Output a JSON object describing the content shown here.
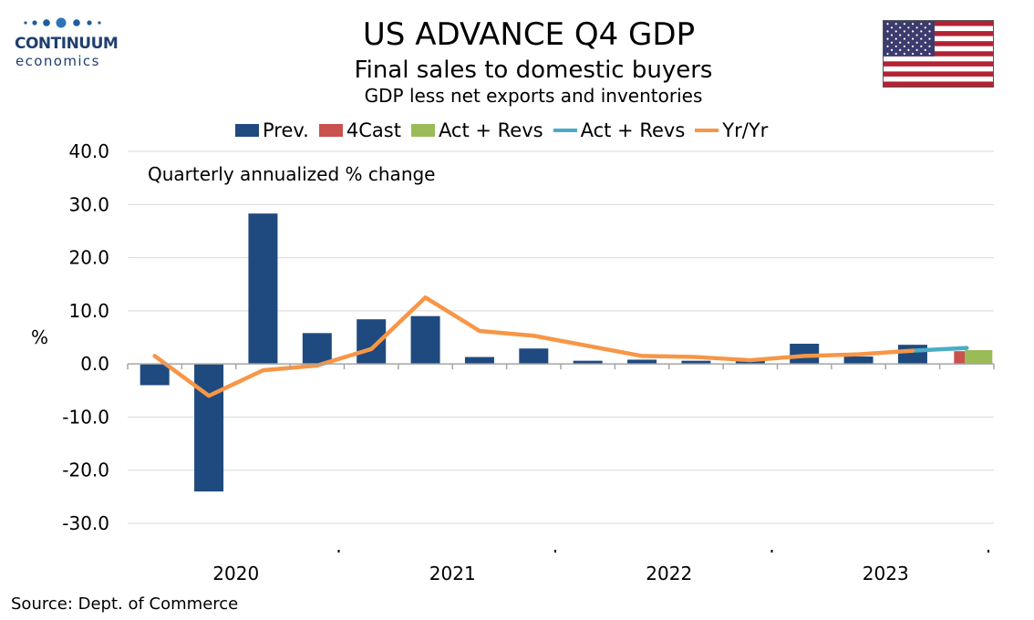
{
  "brand": {
    "name": "CONTINUUM",
    "tagline": "economics"
  },
  "header": {
    "title": "US ADVANCE Q4  GDP",
    "subtitle": "Final sales to domestic buyers",
    "subtitle2": "GDP less net exports and inventories"
  },
  "flag_icon": "us-flag-icon",
  "legend": [
    {
      "label": "Prev.",
      "kind": "box",
      "color": "#1f4a7f"
    },
    {
      "label": "4Cast",
      "kind": "box",
      "color": "#c9524e"
    },
    {
      "label": "Act + Revs",
      "kind": "box",
      "color": "#9bbb59"
    },
    {
      "label": "Act + Revs",
      "kind": "line",
      "color": "#4bacc6"
    },
    {
      "label": "Yr/Yr",
      "kind": "line",
      "color": "#f79646"
    }
  ],
  "chart_data": {
    "type": "bar",
    "annotation": "Quarterly annualized % change",
    "ylabel": "%",
    "ylim": [
      -30,
      40
    ],
    "yticks": [
      "40.0",
      "30.0",
      "20.0",
      "10.0",
      "0.0",
      "-10.0",
      "-20.0",
      "-30.0"
    ],
    "grid": true,
    "years": [
      "2020",
      "2021",
      "2022",
      "2023"
    ],
    "categories": [
      "2020 Q1",
      "2020 Q2",
      "2020 Q3",
      "2020 Q4",
      "2021 Q1",
      "2021 Q2",
      "2021 Q3",
      "2021 Q4",
      "2022 Q1",
      "2022 Q2",
      "2022 Q3",
      "2022 Q4",
      "2023 Q1",
      "2023 Q2",
      "2023 Q3",
      "2023 Q4"
    ],
    "series": [
      {
        "name": "Prev.",
        "type": "bar",
        "color": "#1f4a7f",
        "values": [
          -4.0,
          -24.0,
          28.3,
          5.8,
          8.4,
          9.0,
          1.3,
          2.9,
          0.6,
          0.8,
          0.6,
          0.7,
          3.8,
          1.4,
          3.6,
          null
        ]
      },
      {
        "name": "4Cast",
        "type": "bar",
        "color": "#c9524e",
        "values": [
          null,
          null,
          null,
          null,
          null,
          null,
          null,
          null,
          null,
          null,
          null,
          null,
          null,
          null,
          null,
          2.4
        ]
      },
      {
        "name": "Act + Revs",
        "type": "bar",
        "color": "#9bbb59",
        "values": [
          null,
          null,
          null,
          null,
          null,
          null,
          null,
          null,
          null,
          null,
          null,
          null,
          null,
          null,
          null,
          2.6
        ]
      },
      {
        "name": "Act + Revs",
        "type": "line",
        "color": "#4bacc6",
        "values": [
          null,
          null,
          null,
          null,
          null,
          null,
          null,
          null,
          null,
          null,
          null,
          null,
          null,
          null,
          2.5,
          3.0
        ]
      },
      {
        "name": "Yr/Yr",
        "type": "line",
        "color": "#f79646",
        "values": [
          1.5,
          -6.0,
          -1.2,
          -0.3,
          2.8,
          12.5,
          6.2,
          5.3,
          3.4,
          1.5,
          1.3,
          0.7,
          1.5,
          1.8,
          2.5,
          null
        ]
      }
    ]
  },
  "footer": {
    "source": "Source: Dept. of Commerce"
  }
}
